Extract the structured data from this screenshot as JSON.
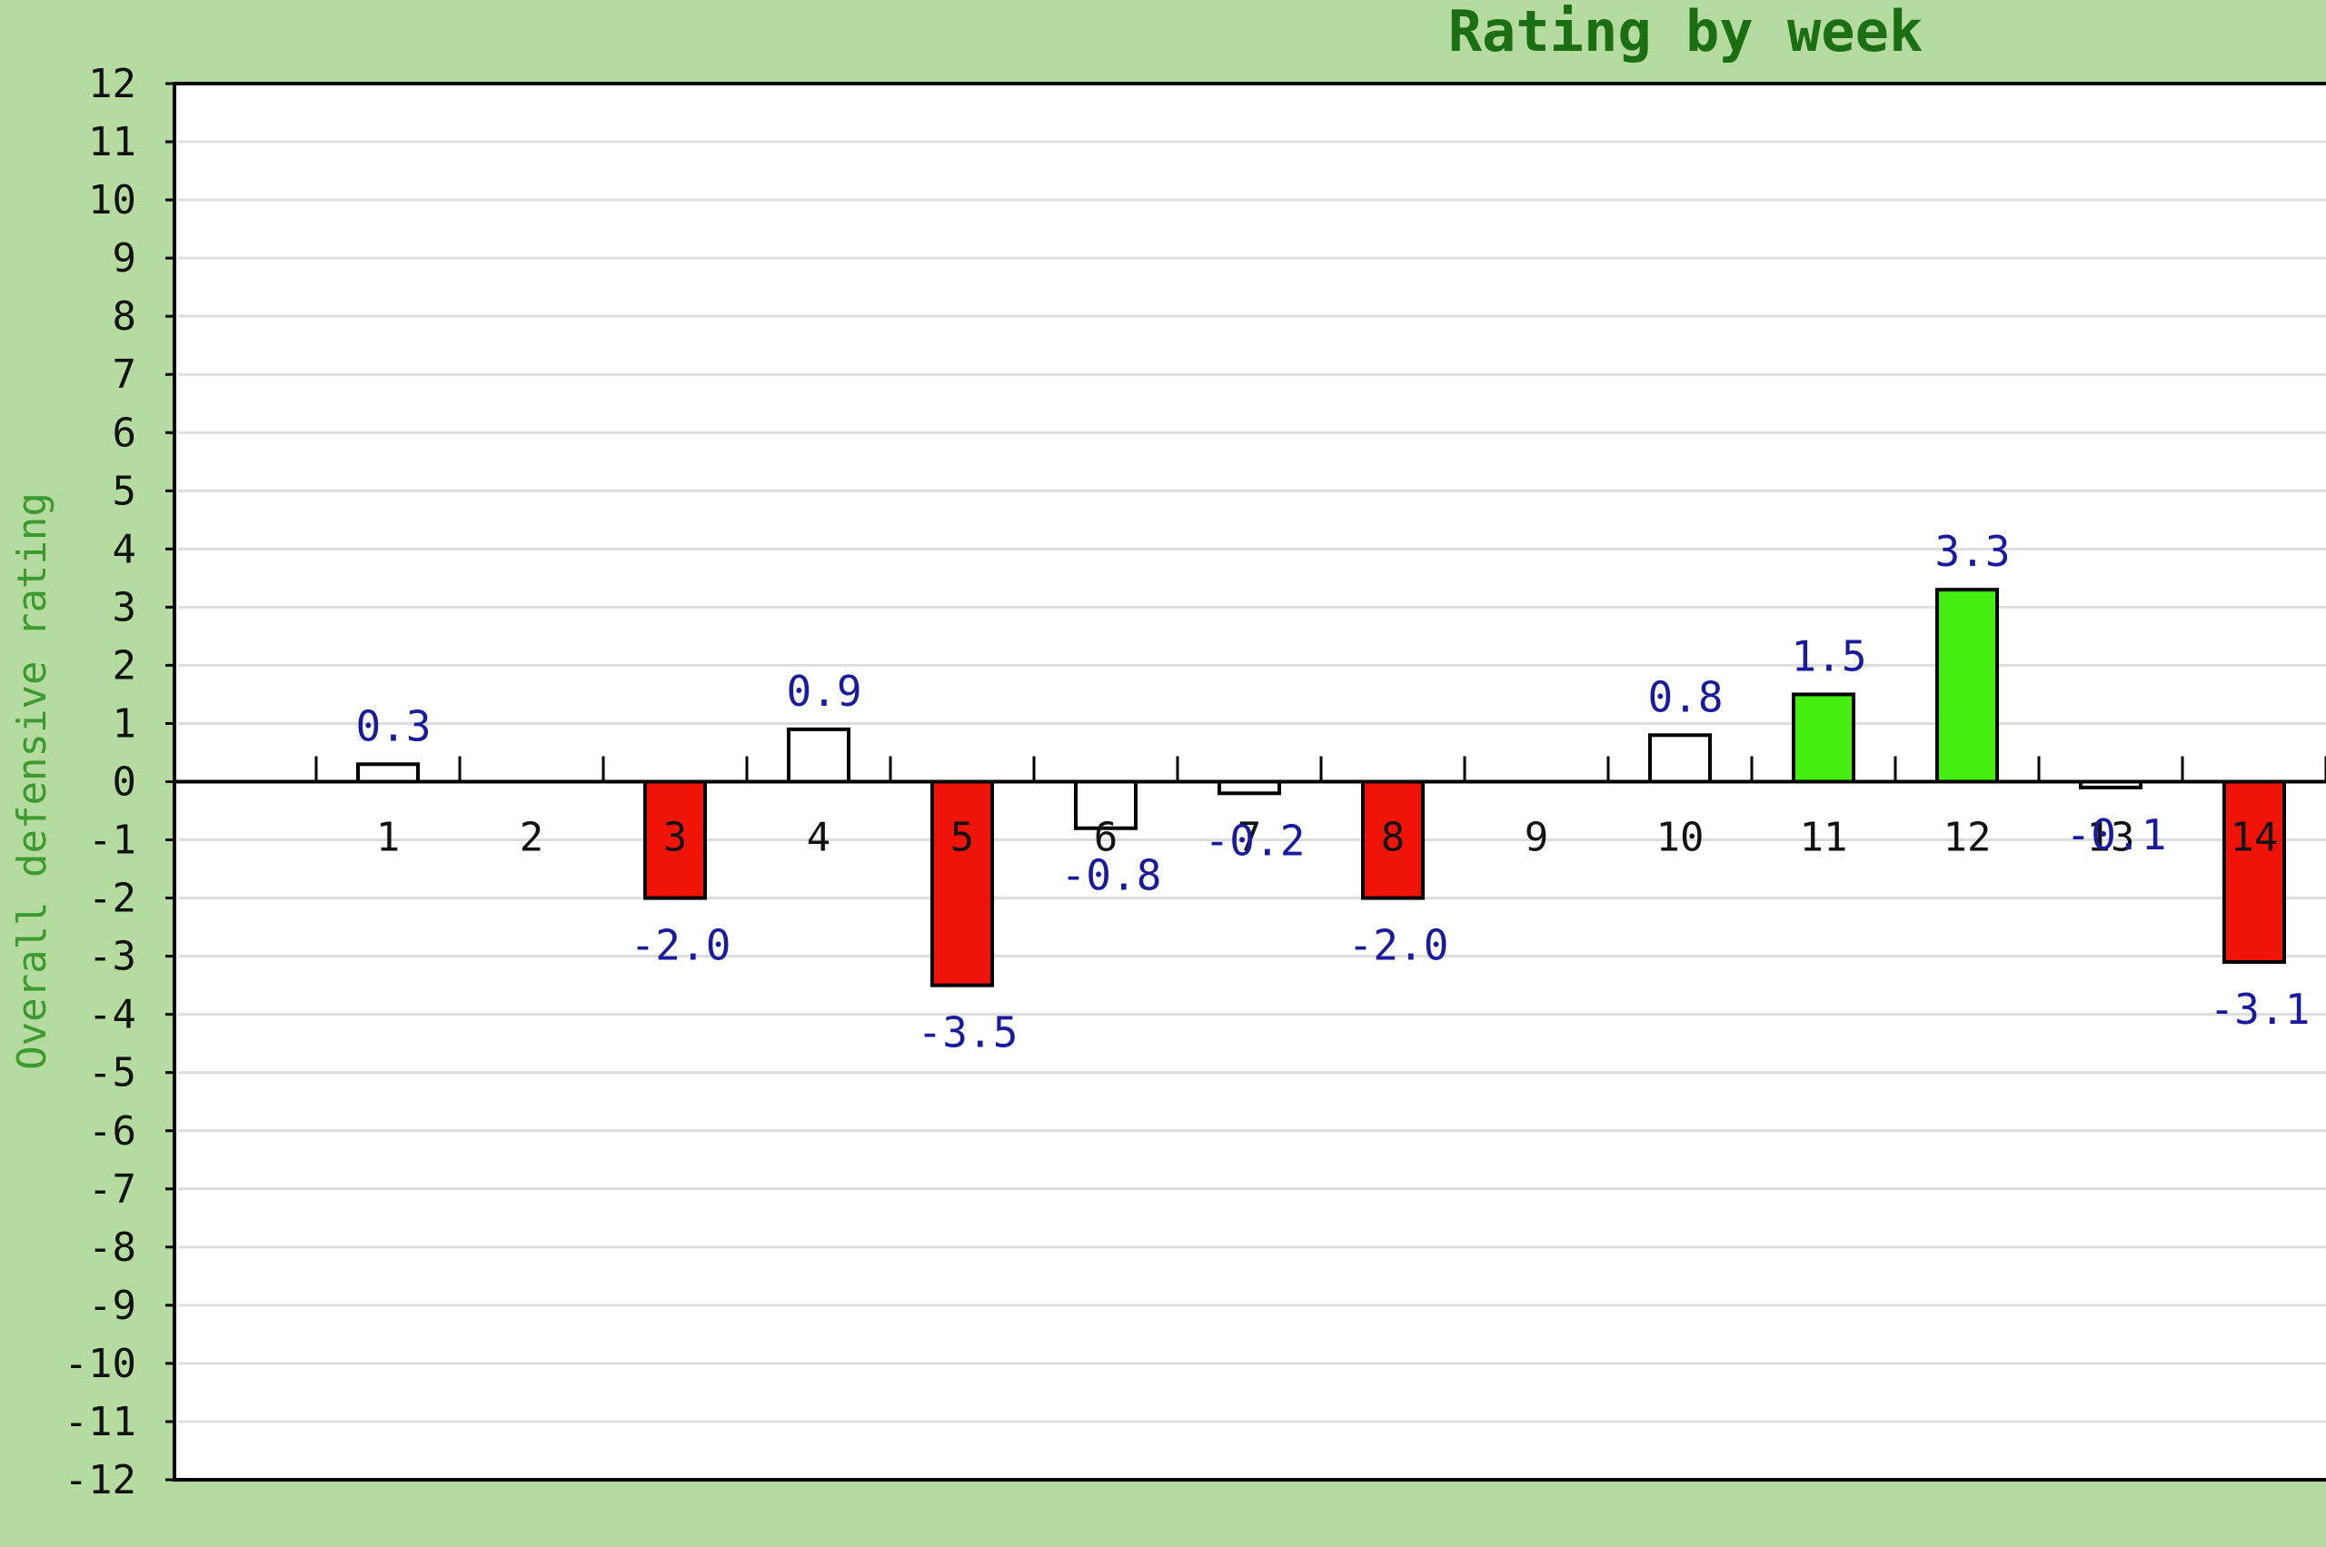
{
  "chart_data": {
    "type": "bar",
    "title": "Rating by week",
    "xlabel": "",
    "ylabel": "Overall defensive rating",
    "ylim": [
      -12,
      12
    ],
    "yticks": [
      12,
      11,
      10,
      9,
      8,
      7,
      6,
      5,
      4,
      3,
      2,
      1,
      0,
      -1,
      -2,
      -3,
      -4,
      -5,
      -6,
      -7,
      -8,
      -9,
      -10,
      -11,
      -12
    ],
    "grid": true,
    "legend": "none",
    "categories": [
      "1",
      "2",
      "3",
      "4",
      "5",
      "6",
      "7",
      "8",
      "9",
      "10",
      "11",
      "12",
      "13",
      "14"
    ],
    "values": [
      0.3,
      null,
      -2.0,
      0.9,
      -3.5,
      -0.8,
      -0.2,
      -2.0,
      null,
      0.8,
      1.5,
      3.3,
      -0.1,
      -3.1
    ],
    "data_labels": [
      "0.3",
      "",
      "-2.0",
      "0.9",
      "-3.5",
      "-0.8",
      "-0.2",
      "-2.0",
      "",
      "0.8",
      "1.5",
      "3.3",
      "-0.1",
      "-3.1"
    ],
    "bar_colors": [
      "#ffffff",
      "#ffffff",
      "#f01408",
      "#ffffff",
      "#f01408",
      "#ffffff",
      "#ffffff",
      "#f01408",
      "#ffffff",
      "#ffffff",
      "#44ee11",
      "#44ee11",
      "#ffffff",
      "#f01408"
    ],
    "colors": {
      "background": "#b6dba0",
      "plot_background": "#ffffff",
      "gridline": "#dddddd",
      "title": "#1c6e12",
      "ylabel": "#3c9a2e",
      "data_label": "#1a1a9c",
      "bar_outline": "#000000",
      "positive_highlight": "#44ee11",
      "negative_highlight": "#f01408"
    }
  }
}
